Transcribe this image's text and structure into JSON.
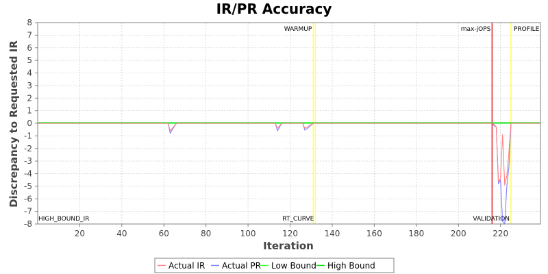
{
  "chart_data": {
    "type": "line",
    "title": "IR/PR Accuracy",
    "xlabel": "Iteration",
    "ylabel": "Discrepancy to Requested IR",
    "xlim": [
      0,
      239
    ],
    "ylim": [
      -8,
      8
    ],
    "x_ticks": [
      20,
      40,
      60,
      80,
      100,
      120,
      140,
      160,
      180,
      200,
      220
    ],
    "y_ticks": [
      -8,
      -7,
      -6,
      -5,
      -4,
      -3,
      -2,
      -1,
      0,
      1,
      2,
      3,
      4,
      5,
      6,
      7,
      8
    ],
    "grid": true,
    "legend_position": "bottom",
    "series": [
      {
        "name": "Actual IR",
        "color": "#ff8080",
        "points": [
          [
            0,
            0
          ],
          [
            62,
            0
          ],
          [
            63,
            -0.6
          ],
          [
            64,
            -0.4
          ],
          [
            66,
            0
          ],
          [
            113,
            0
          ],
          [
            114,
            -0.4
          ],
          [
            116,
            0
          ],
          [
            126,
            0
          ],
          [
            127,
            -0.4
          ],
          [
            129,
            -0.2
          ],
          [
            131,
            0
          ],
          [
            216,
            0
          ],
          [
            217,
            -0.1
          ],
          [
            218,
            -0.3
          ],
          [
            219,
            -4.6
          ],
          [
            220,
            -4.4
          ],
          [
            221,
            -0.9
          ],
          [
            222,
            -4.9
          ],
          [
            223,
            -4.2
          ],
          [
            224,
            -2.3
          ],
          [
            225,
            0
          ],
          [
            239,
            0
          ]
        ]
      },
      {
        "name": "Actual PR",
        "color": "#8080ff",
        "points": [
          [
            0,
            0
          ],
          [
            62,
            0
          ],
          [
            63,
            -0.8
          ],
          [
            64,
            -0.5
          ],
          [
            66,
            0
          ],
          [
            113,
            0
          ],
          [
            114,
            -0.6
          ],
          [
            116,
            0
          ],
          [
            126,
            0
          ],
          [
            127,
            -0.55
          ],
          [
            129,
            -0.3
          ],
          [
            131,
            0
          ],
          [
            216,
            0
          ],
          [
            217,
            -0.2
          ],
          [
            218,
            -0.3
          ],
          [
            219,
            -4.8
          ],
          [
            220,
            -4.5
          ],
          [
            221,
            -7.8
          ],
          [
            222,
            -8
          ],
          [
            223,
            -5
          ],
          [
            224,
            -3.5
          ],
          [
            225,
            0
          ],
          [
            239,
            0
          ]
        ]
      },
      {
        "name": "Low Bound",
        "color": "#33ff33",
        "points": [
          [
            0,
            0
          ],
          [
            131,
            0
          ],
          [
            131.5,
            0
          ],
          [
            239,
            0
          ]
        ]
      },
      {
        "name": "High Bound",
        "color": "#00e000",
        "points": [
          [
            0,
            0.05
          ],
          [
            131,
            0.05
          ],
          [
            216,
            0.05
          ],
          [
            225,
            0.05
          ],
          [
            239,
            0.05
          ]
        ]
      }
    ],
    "markers": [
      {
        "label": "WARMUP",
        "x": 131,
        "color": "#ffff66",
        "label_anchor": "end",
        "label_pos": "top"
      },
      {
        "label": "RT_CURVE",
        "x": 132,
        "color": "#ffff66",
        "label_anchor": "end",
        "label_pos": "bottom"
      },
      {
        "label": "max-jOPS",
        "x": 216,
        "color": "#e02020",
        "label_anchor": "end",
        "label_pos": "top"
      },
      {
        "label": "VALIDATION",
        "x": 225,
        "color": "#ffff66",
        "label_anchor": "end",
        "label_pos": "bottom"
      },
      {
        "label": "PROFILE",
        "x": 225,
        "color": "#ffff66",
        "label_anchor": "start",
        "label_pos": "top"
      }
    ],
    "bound_labels": [
      {
        "label": "HIGH_BOUND_IR",
        "label_pos": "bottom-left"
      }
    ]
  }
}
